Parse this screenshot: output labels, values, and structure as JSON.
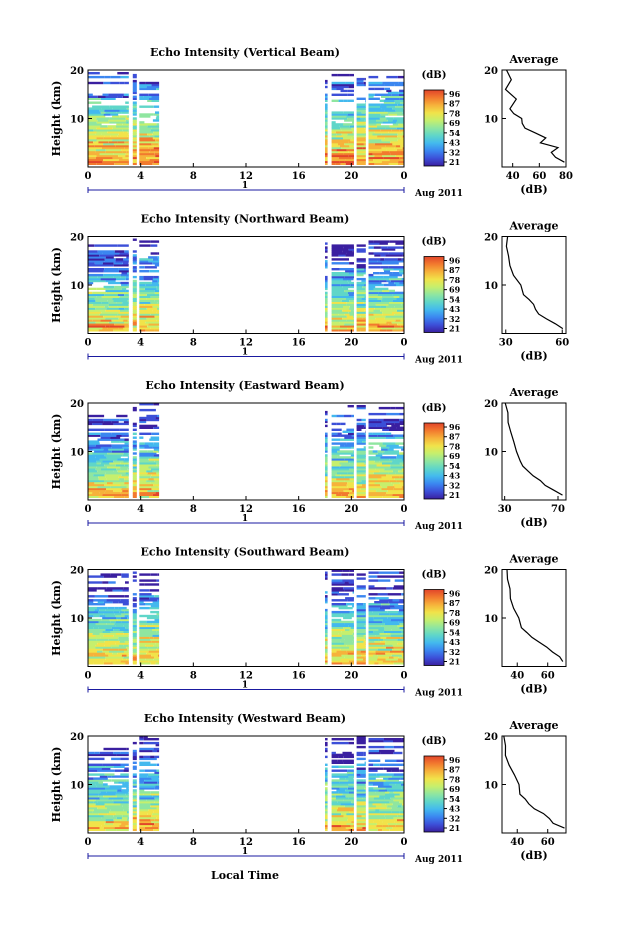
{
  "colors": {
    "colorbar": [
      "#3a1fa0",
      "#3c4fd8",
      "#3b86f0",
      "#43b9ee",
      "#5fd6c9",
      "#8fe6a0",
      "#c6ef6d",
      "#f1e34a",
      "#f6b23b",
      "#f27a2e",
      "#e2452a"
    ],
    "data_band_low": "#f2e35a",
    "data_band_mid": "#6fd8cf",
    "data_band_high": "#3e7fe8"
  },
  "common": {
    "ylabel": "Height (km)",
    "yticks": [
      "20",
      "10"
    ],
    "xticks": [
      "0",
      "4",
      "8",
      "12",
      "16",
      "20",
      "0"
    ],
    "date_label": "Aug 2011",
    "day_label": "1",
    "colorbar_unit": "(dB)",
    "colorbar_ticks": [
      "96",
      "87",
      "78",
      "69",
      "54",
      "43",
      "32",
      "21"
    ],
    "side_title": "Average",
    "side_unit": "(dB)",
    "x_axis_title": "Local Time"
  },
  "chart_data": [
    {
      "type": "heatmap",
      "title": "Echo Intensity (Vertical Beam)",
      "x": "local time (h)",
      "xlim": [
        0,
        24
      ],
      "ylim": [
        0,
        20
      ],
      "data_coverage_hours": [
        [
          0,
          3.1
        ],
        [
          3.4,
          3.7
        ],
        [
          3.9,
          5.4
        ],
        [
          18.0,
          18.2
        ],
        [
          18.5,
          20.2
        ],
        [
          20.4,
          21.1
        ],
        [
          21.3,
          24
        ]
      ],
      "colorbar_range": [
        21,
        96
      ],
      "profile": {
        "title": "Average",
        "xlabel": "(dB)",
        "xticks": [
          "40",
          "60",
          "80"
        ],
        "xlim": [
          32,
          80
        ],
        "height_km": [
          1,
          2,
          3,
          4,
          5,
          6,
          7,
          8,
          9,
          10,
          11,
          12,
          14,
          16,
          18,
          20
        ],
        "value_db": [
          80,
          72,
          68,
          74,
          62,
          66,
          58,
          50,
          46,
          48,
          40,
          38,
          42,
          36,
          40,
          35
        ]
      }
    },
    {
      "type": "heatmap",
      "title": "Echo Intensity (Northward Beam)",
      "x": "local time (h)",
      "xlim": [
        0,
        24
      ],
      "ylim": [
        0,
        20
      ],
      "data_coverage_hours": [
        [
          0,
          3.1
        ],
        [
          3.4,
          3.7
        ],
        [
          3.9,
          5.4
        ],
        [
          18.0,
          18.2
        ],
        [
          18.5,
          20.2
        ],
        [
          20.4,
          21.1
        ],
        [
          21.3,
          24
        ]
      ],
      "colorbar_range": [
        21,
        96
      ],
      "profile": {
        "title": "Average",
        "xlabel": "(dB)",
        "xticks": [
          "30",
          "60"
        ],
        "xlim": [
          28,
          62
        ],
        "height_km": [
          1,
          2,
          3,
          4,
          5,
          6,
          7,
          8,
          10,
          12,
          14,
          16,
          18,
          20
        ],
        "value_db": [
          60,
          56,
          52,
          48,
          46,
          44,
          42,
          40,
          38,
          35,
          33,
          32,
          31,
          30
        ]
      }
    },
    {
      "type": "heatmap",
      "title": "Echo Intensity (Eastward Beam)",
      "x": "local time (h)",
      "xlim": [
        0,
        24
      ],
      "ylim": [
        0,
        20
      ],
      "data_coverage_hours": [
        [
          0,
          3.1
        ],
        [
          3.4,
          3.7
        ],
        [
          3.9,
          5.4
        ],
        [
          18.0,
          18.2
        ],
        [
          18.5,
          20.2
        ],
        [
          20.4,
          21.1
        ],
        [
          21.3,
          24
        ]
      ],
      "colorbar_range": [
        21,
        96
      ],
      "profile": {
        "title": "Average",
        "xlabel": "(dB)",
        "xticks": [
          "30",
          "70"
        ],
        "xlim": [
          28,
          76
        ],
        "height_km": [
          1,
          2,
          3,
          4,
          5,
          6,
          7,
          8,
          10,
          12,
          14,
          16,
          18,
          20
        ],
        "value_db": [
          72,
          66,
          60,
          56,
          52,
          48,
          45,
          42,
          40,
          36,
          34,
          33,
          31,
          30
        ]
      }
    },
    {
      "type": "heatmap",
      "title": "Echo Intensity (Southward Beam)",
      "x": "local time (h)",
      "xlim": [
        0,
        24
      ],
      "ylim": [
        0,
        20
      ],
      "data_coverage_hours": [
        [
          0,
          3.1
        ],
        [
          3.4,
          3.7
        ],
        [
          3.9,
          5.4
        ],
        [
          18.0,
          18.2
        ],
        [
          18.5,
          20.2
        ],
        [
          20.4,
          21.1
        ],
        [
          21.3,
          24
        ]
      ],
      "colorbar_range": [
        21,
        96
      ],
      "profile": {
        "title": "Average",
        "xlabel": "(dB)",
        "xticks": [
          "40",
          "60"
        ],
        "xlim": [
          30,
          72
        ],
        "height_km": [
          1,
          2,
          3,
          4,
          5,
          6,
          7,
          8,
          10,
          12,
          14,
          16,
          18,
          20
        ],
        "value_db": [
          70,
          68,
          62,
          58,
          54,
          50,
          46,
          44,
          42,
          38,
          35,
          36,
          33,
          32
        ]
      }
    },
    {
      "type": "heatmap",
      "title": "Echo Intensity (Westward Beam)",
      "x": "local time (h)",
      "xlim": [
        0,
        24
      ],
      "ylim": [
        0,
        20
      ],
      "data_coverage_hours": [
        [
          0,
          3.1
        ],
        [
          3.4,
          3.7
        ],
        [
          3.9,
          5.4
        ],
        [
          18.0,
          18.2
        ],
        [
          18.5,
          20.2
        ],
        [
          20.4,
          21.1
        ],
        [
          21.3,
          24
        ]
      ],
      "colorbar_range": [
        21,
        96
      ],
      "profile": {
        "title": "Average",
        "xlabel": "(dB)",
        "xticks": [
          "40",
          "60"
        ],
        "xlim": [
          30,
          72
        ],
        "height_km": [
          1,
          2,
          3,
          4,
          5,
          6,
          7,
          8,
          10,
          12,
          14,
          16,
          18,
          20
        ],
        "value_db": [
          70,
          64,
          60,
          56,
          52,
          48,
          46,
          42,
          40,
          37,
          35,
          33,
          32,
          31
        ]
      }
    }
  ]
}
